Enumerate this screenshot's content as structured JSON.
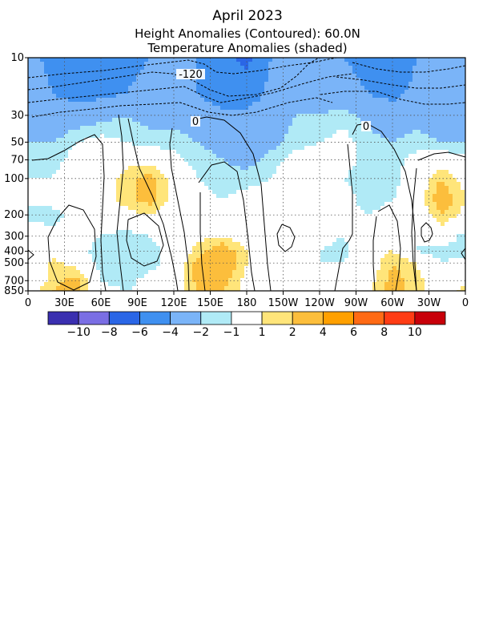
{
  "header": {
    "title": "April 2023",
    "subtitle_height": "Height Anomalies (Contoured): 60.0N",
    "subtitle_temp": "Temperature Anomalies (shaded)"
  },
  "chart_data": {
    "type": "heatmap",
    "title": "April 2023",
    "subtitle": [
      "Height Anomalies (Contoured): 60.0N",
      "Temperature Anomalies (shaded)"
    ],
    "x_axis": {
      "kind": "longitude",
      "ticks": [
        {
          "lon": 0,
          "label": "0"
        },
        {
          "lon": 30,
          "label": "30E"
        },
        {
          "lon": 60,
          "label": "60E"
        },
        {
          "lon": 90,
          "label": "90E"
        },
        {
          "lon": 120,
          "label": "120E"
        },
        {
          "lon": 150,
          "label": "150E"
        },
        {
          "lon": 180,
          "label": "180"
        },
        {
          "lon": 210,
          "label": "150W"
        },
        {
          "lon": 240,
          "label": "120W"
        },
        {
          "lon": 270,
          "label": "90W"
        },
        {
          "lon": 300,
          "label": "60W"
        },
        {
          "lon": 330,
          "label": "30W"
        },
        {
          "lon": 360,
          "label": "0"
        }
      ],
      "range": [
        0,
        360
      ]
    },
    "y_axis": {
      "kind": "pressure_hPa",
      "scale": "log",
      "inverted": true,
      "range": [
        10,
        850
      ],
      "ticks": [
        {
          "p": 10,
          "label": "10"
        },
        {
          "p": 30,
          "label": "30"
        },
        {
          "p": 50,
          "label": "50"
        },
        {
          "p": 70,
          "label": "70"
        },
        {
          "p": 100,
          "label": "100"
        },
        {
          "p": 200,
          "label": "200"
        },
        {
          "p": 300,
          "label": "300"
        },
        {
          "p": 400,
          "label": "400"
        },
        {
          "p": 500,
          "label": "500"
        },
        {
          "p": 700,
          "label": "700"
        },
        {
          "p": 850,
          "label": "850"
        }
      ]
    },
    "grid": true,
    "lon_nodes": [
      0,
      20,
      40,
      60,
      80,
      100,
      120,
      140,
      160,
      180,
      200,
      220,
      240,
      260,
      280,
      300,
      320,
      340,
      360
    ],
    "levels": [
      10,
      20,
      30,
      50,
      70,
      100,
      150,
      200,
      300,
      400,
      500,
      700,
      850
    ],
    "temperature_anomaly": [
      [
        -3.5,
        -4.5,
        -5.0,
        -5.0,
        -4.5,
        -4.0,
        -3.5,
        -4.0,
        -5.5,
        -6.5,
        -4.0,
        -3.0,
        -3.5,
        -4.0,
        -5.0,
        -5.5,
        -4.0,
        -4.0,
        -3.5
      ],
      [
        -3.0,
        -4.0,
        -4.5,
        -4.5,
        -4.0,
        -3.5,
        -3.0,
        -4.0,
        -5.0,
        -5.0,
        -3.5,
        -2.5,
        -3.0,
        -3.0,
        -4.0,
        -4.5,
        -3.5,
        -3.5,
        -3.0
      ],
      [
        -2.5,
        -3.5,
        -3.0,
        -2.5,
        -2.0,
        -2.5,
        -2.5,
        -3.0,
        -3.5,
        -3.5,
        -3.0,
        -2.0,
        -2.0,
        -1.5,
        -2.5,
        -3.0,
        -2.5,
        -3.0,
        -2.5
      ],
      [
        -2.0,
        -2.0,
        -1.0,
        -0.5,
        -1.0,
        -1.5,
        -1.5,
        -2.0,
        -2.5,
        -3.0,
        -2.5,
        -1.5,
        -1.0,
        -0.5,
        -1.5,
        -2.0,
        -1.5,
        -2.0,
        -2.0
      ],
      [
        -1.5,
        -1.5,
        -0.5,
        0.0,
        0.5,
        0.5,
        -0.5,
        -1.5,
        -2.0,
        -2.5,
        -1.5,
        -0.5,
        0.0,
        -0.5,
        -1.5,
        -1.5,
        -0.5,
        0.0,
        -0.5
      ],
      [
        -1.0,
        -1.0,
        0.0,
        0.0,
        1.5,
        2.5,
        0.5,
        -1.0,
        -1.5,
        -1.5,
        -1.0,
        0.0,
        0.0,
        -1.0,
        -1.5,
        -1.5,
        0.0,
        2.0,
        0.5
      ],
      [
        -0.5,
        -0.5,
        0.0,
        0.0,
        1.5,
        2.5,
        0.5,
        -0.5,
        -1.0,
        -0.5,
        0.0,
        0.5,
        0.5,
        -0.5,
        -1.5,
        -1.0,
        0.0,
        3.0,
        1.0
      ],
      [
        -1.5,
        -1.5,
        -0.5,
        0.0,
        0.5,
        1.0,
        0.0,
        -1.0,
        -0.5,
        0.0,
        1.0,
        0.5,
        0.0,
        -0.5,
        -1.0,
        -0.5,
        -0.5,
        2.0,
        0.5
      ],
      [
        0.0,
        -0.5,
        -0.5,
        -1.0,
        -1.5,
        -1.0,
        0.0,
        0.5,
        1.0,
        0.0,
        0.5,
        0.5,
        -0.5,
        -1.0,
        0.5,
        -0.5,
        -1.0,
        0.0,
        -1.5
      ],
      [
        -0.5,
        0.0,
        -0.5,
        -1.5,
        -2.0,
        -1.5,
        -0.5,
        1.5,
        3.0,
        1.0,
        -0.5,
        -1.0,
        -1.0,
        -1.5,
        0.5,
        1.0,
        -1.0,
        -1.5,
        -1.5
      ],
      [
        -1.0,
        1.5,
        0.5,
        -1.5,
        -2.0,
        -1.5,
        -0.5,
        2.5,
        3.5,
        1.0,
        -0.5,
        -1.0,
        -1.0,
        -1.0,
        0.0,
        2.0,
        1.0,
        -1.0,
        -0.5
      ],
      [
        -0.5,
        1.5,
        2.5,
        -1.0,
        -1.5,
        -0.5,
        0.0,
        2.5,
        2.5,
        0.5,
        -0.5,
        -0.5,
        0.5,
        -0.5,
        0.5,
        2.5,
        1.5,
        -0.5,
        0.5
      ],
      [
        0.0,
        2.0,
        2.5,
        -0.5,
        -1.0,
        -0.5,
        0.0,
        2.0,
        2.0,
        0.5,
        0.0,
        0.0,
        0.5,
        0.5,
        0.5,
        2.5,
        1.5,
        0.0,
        1.5
      ]
    ],
    "height_contour_labels": [
      "-120",
      "0",
      "0"
    ],
    "colorbar": {
      "boundaries": [
        "-10",
        "-8",
        "-6",
        "-4",
        "-2",
        "-1",
        "1",
        "2",
        "4",
        "6",
        "8",
        "10"
      ],
      "colors": [
        "#3a2fb0",
        "#7a6ee4",
        "#2a66e6",
        "#3f90f0",
        "#7ab4f8",
        "#b0eaf6",
        "#ffffff",
        "#ffe57a",
        "#fcbe3c",
        "#ffa000",
        "#ff6a14",
        "#ff3c14",
        "#c8000a"
      ]
    }
  }
}
